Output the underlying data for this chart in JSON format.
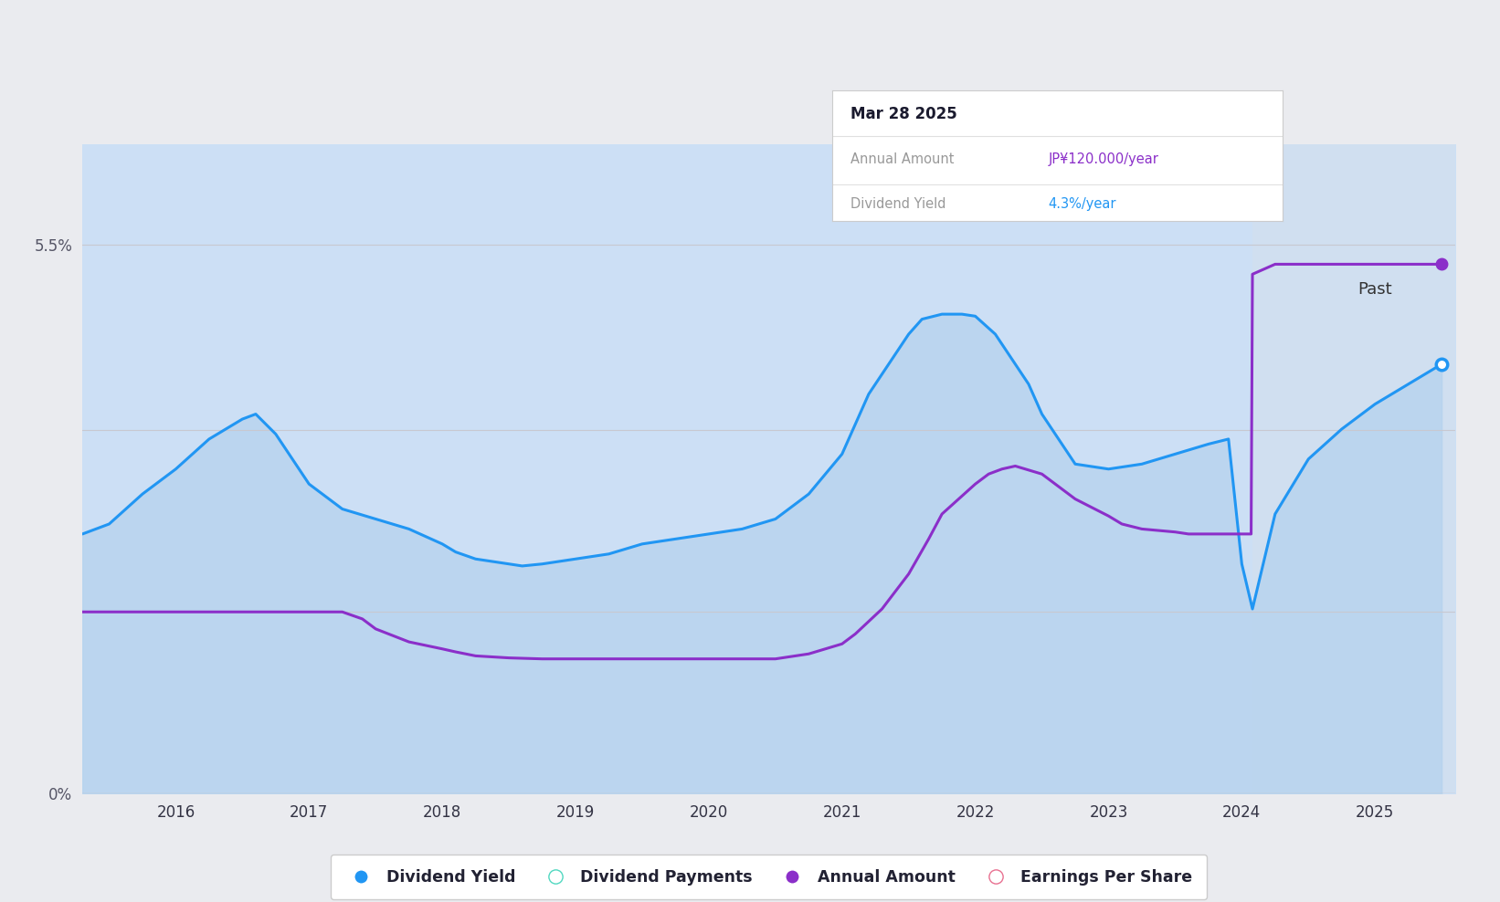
{
  "background_color": "#eaebef",
  "plot_bg_color": "#eaebef",
  "grid_color": "#c8c8d0",
  "x_min": 2015.3,
  "x_max": 2025.6,
  "y_min": 0.0,
  "y_max": 6.5,
  "x_ticks": [
    2016,
    2017,
    2018,
    2019,
    2020,
    2021,
    2022,
    2023,
    2024,
    2025
  ],
  "past_start": 2024.08,
  "past_label": "Past",
  "past_bg_color": "#d0dff0",
  "fill_color": "#ccdff5",
  "dividend_yield_color": "#2196F3",
  "annual_amount_color": "#8B2FC9",
  "tooltip_title": "Mar 28 2025",
  "tooltip_label1": "Annual Amount",
  "tooltip_value1": "JP¥120.000/year",
  "tooltip_label2": "Dividend Yield",
  "tooltip_value2": "4.3%/year",
  "tooltip_value1_color": "#8B2FC9",
  "tooltip_value2_color": "#2196F3",
  "dividend_yield_x": [
    2015.3,
    2015.5,
    2015.75,
    2016.0,
    2016.25,
    2016.5,
    2016.6,
    2016.75,
    2017.0,
    2017.15,
    2017.25,
    2017.5,
    2017.75,
    2018.0,
    2018.1,
    2018.25,
    2018.5,
    2018.6,
    2018.75,
    2019.0,
    2019.25,
    2019.5,
    2019.75,
    2020.0,
    2020.1,
    2020.25,
    2020.5,
    2020.65,
    2020.75,
    2021.0,
    2021.1,
    2021.2,
    2021.4,
    2021.5,
    2021.6,
    2021.75,
    2021.9,
    2022.0,
    2022.15,
    2022.25,
    2022.4,
    2022.5,
    2022.65,
    2022.75,
    2023.0,
    2023.25,
    2023.5,
    2023.75,
    2023.9,
    2024.0,
    2024.08,
    2024.25,
    2024.5,
    2024.75,
    2025.0,
    2025.25,
    2025.5
  ],
  "dividend_yield_y": [
    2.6,
    2.7,
    3.0,
    3.25,
    3.55,
    3.75,
    3.8,
    3.6,
    3.1,
    2.95,
    2.85,
    2.75,
    2.65,
    2.5,
    2.42,
    2.35,
    2.3,
    2.28,
    2.3,
    2.35,
    2.4,
    2.5,
    2.55,
    2.6,
    2.62,
    2.65,
    2.75,
    2.9,
    3.0,
    3.4,
    3.7,
    4.0,
    4.4,
    4.6,
    4.75,
    4.8,
    4.8,
    4.78,
    4.6,
    4.4,
    4.1,
    3.8,
    3.5,
    3.3,
    3.25,
    3.3,
    3.4,
    3.5,
    3.55,
    2.3,
    1.85,
    2.8,
    3.35,
    3.65,
    3.9,
    4.1,
    4.3
  ],
  "annual_amount_x": [
    2015.3,
    2015.5,
    2015.75,
    2016.0,
    2016.25,
    2016.5,
    2016.75,
    2017.0,
    2017.25,
    2017.4,
    2017.5,
    2017.75,
    2018.0,
    2018.1,
    2018.25,
    2018.5,
    2018.75,
    2019.0,
    2019.25,
    2019.5,
    2019.75,
    2020.0,
    2020.25,
    2020.5,
    2020.65,
    2020.75,
    2021.0,
    2021.1,
    2021.3,
    2021.5,
    2021.65,
    2021.75,
    2022.0,
    2022.1,
    2022.2,
    2022.3,
    2022.5,
    2022.6,
    2022.75,
    2023.0,
    2023.1,
    2023.25,
    2023.5,
    2023.6,
    2023.75,
    2024.0,
    2024.07,
    2024.08,
    2024.25,
    2024.5,
    2024.75,
    2025.0,
    2025.25,
    2025.5
  ],
  "annual_amount_y": [
    1.82,
    1.82,
    1.82,
    1.82,
    1.82,
    1.82,
    1.82,
    1.82,
    1.82,
    1.75,
    1.65,
    1.52,
    1.45,
    1.42,
    1.38,
    1.36,
    1.35,
    1.35,
    1.35,
    1.35,
    1.35,
    1.35,
    1.35,
    1.35,
    1.38,
    1.4,
    1.5,
    1.6,
    1.85,
    2.2,
    2.55,
    2.8,
    3.1,
    3.2,
    3.25,
    3.28,
    3.2,
    3.1,
    2.95,
    2.78,
    2.7,
    2.65,
    2.62,
    2.6,
    2.6,
    2.6,
    2.6,
    5.2,
    5.3,
    5.3,
    5.3,
    5.3,
    5.3,
    5.3
  ]
}
